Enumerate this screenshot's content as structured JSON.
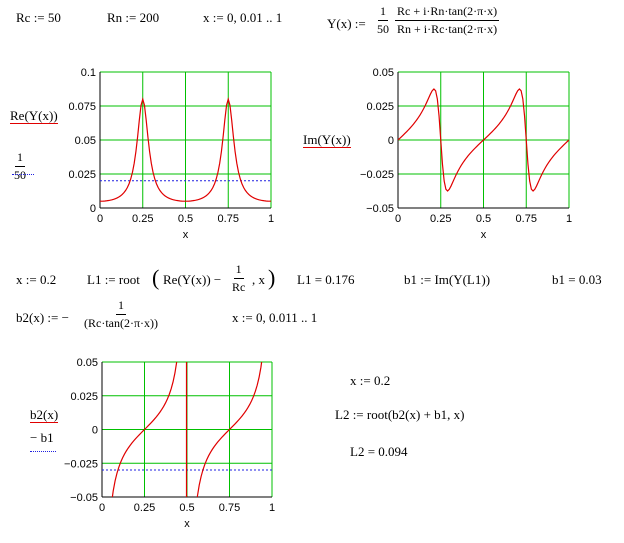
{
  "defs": {
    "rc": "Rc := 50",
    "rn": "Rn := 200",
    "xrange": "x := 0, 0.01 .. 1",
    "y_lhs": "Y(x) :=",
    "y_coef_num": "1",
    "y_coef_den": "50",
    "y_num": "Rc + i·Rn·tan(2·π·x)",
    "y_den": "Rn + i·Rc·tan(2·π·x)"
  },
  "plot1": {
    "legend_trace1": "Re(Y(x))",
    "legend_trace2_num": "1",
    "legend_trace2_den": "50",
    "y_ticks": [
      "0.1",
      "0.075",
      "0.05",
      "0.025",
      "0"
    ],
    "x_ticks": [
      "0",
      "0.25",
      "0.5",
      "0.75",
      "1"
    ],
    "xlabel": "x"
  },
  "plot2": {
    "legend_trace1": "Im(Y(x))",
    "y_ticks": [
      "0.05",
      "0.025",
      "0",
      "−0.025",
      "−0.05"
    ],
    "x_ticks": [
      "0",
      "0.25",
      "0.5",
      "0.75",
      "1"
    ],
    "xlabel": "x"
  },
  "row2": {
    "x": "x := 0.2",
    "l1_lhs": "L1 := root",
    "l1_inner": "Re(Y(x)) −",
    "l1_frac_num": "1",
    "l1_frac_den": "Rc",
    "l1_tail": ", x",
    "l1_result": "L1 = 0.176",
    "b1_def": "b1 := Im(Y(L1))",
    "b1_result": "b1 = 0.03"
  },
  "row3": {
    "b2_lhs": "b2(x) := −",
    "b2_num": "1",
    "b2_den": "(Rc·tan(2·π·x))",
    "xrange2": "x := 0, 0.011 .. 1"
  },
  "plot3": {
    "legend_trace1": "b2(x)",
    "legend_trace2": "− b1",
    "y_ticks": [
      "0.05",
      "0.025",
      "0",
      "−0.025",
      "−0.05"
    ],
    "x_ticks": [
      "0",
      "0.25",
      "0.5",
      "0.75",
      "1"
    ],
    "xlabel": "x"
  },
  "right_block": {
    "x": "x := 0.2",
    "l2_def": "L2 := root(b2(x) + b1, x)",
    "l2_result": "L2 = 0.094"
  },
  "colors": {
    "trace": "#e00000",
    "ref": "#1f1fe0",
    "grid": "#00c000",
    "axis": "#000000"
  },
  "chart_data": [
    {
      "type": "line",
      "x": "x := 0, 0.01 .. 1",
      "series": [
        {
          "name": "Re(Y(x))",
          "color": "#e00000"
        },
        {
          "name": "1/50",
          "constant": 0.02,
          "color": "#1f1fe0",
          "style": "dotted"
        }
      ],
      "xlim": [
        0,
        1
      ],
      "ylim": [
        0,
        0.1
      ],
      "grid": true,
      "xlabel": "x"
    },
    {
      "type": "line",
      "x": "x := 0, 0.01 .. 1",
      "series": [
        {
          "name": "Im(Y(x))",
          "color": "#e00000"
        }
      ],
      "xlim": [
        0,
        1
      ],
      "ylim": [
        -0.05,
        0.05
      ],
      "grid": true,
      "xlabel": "x"
    },
    {
      "type": "line",
      "x": "x := 0, 0.011 .. 1",
      "series": [
        {
          "name": "b2(x)",
          "color": "#e00000"
        },
        {
          "name": "− b1",
          "constant": -0.03,
          "color": "#1f1fe0",
          "style": "dotted"
        }
      ],
      "xlim": [
        0,
        1
      ],
      "ylim": [
        -0.05,
        0.05
      ],
      "grid": true,
      "xlabel": "x"
    }
  ]
}
